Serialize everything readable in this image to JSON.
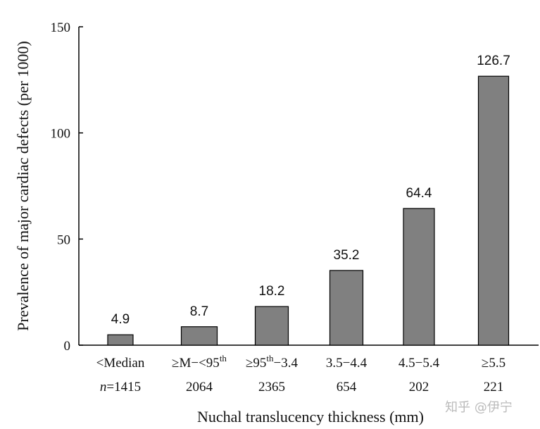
{
  "chart_data": {
    "type": "bar",
    "title": "",
    "xlabel": "Nuchal translucency thickness (mm)",
    "ylabel": "Prevalence of major cardiac defects (per 1000)",
    "ylim": [
      0,
      150
    ],
    "yticks": [
      0,
      50,
      100,
      150
    ],
    "grid": false,
    "categories": [
      {
        "pre": "<Median",
        "sup": "",
        "post": "",
        "n": "1415",
        "n_prefix": "n"
      },
      {
        "pre": "≥M−<95",
        "sup": "th",
        "post": "",
        "n": "2064"
      },
      {
        "pre": "≥95",
        "sup": "th",
        "post": "−3.4",
        "n": "2365"
      },
      {
        "pre": "3.5−4.4",
        "sup": "",
        "post": "",
        "n": "654"
      },
      {
        "pre": "4.5−5.4",
        "sup": "",
        "post": "",
        "n": "202"
      },
      {
        "pre": "≥5.5",
        "sup": "",
        "post": "",
        "n": "221"
      }
    ],
    "values": [
      4.9,
      8.7,
      18.2,
      35.2,
      64.4,
      126.7
    ],
    "value_labels": [
      "4.9",
      "8.7",
      "18.2",
      "35.2",
      "64.4",
      "126.7"
    ],
    "bar_color": "#808080"
  },
  "watermark": "知乎 @伊宁"
}
